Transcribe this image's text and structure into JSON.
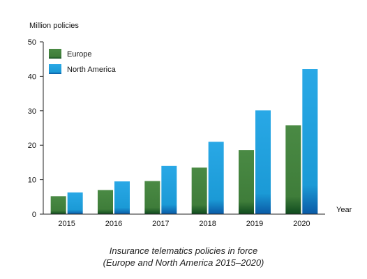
{
  "chart_data": {
    "type": "bar",
    "categories": [
      "2015",
      "2016",
      "2017",
      "2018",
      "2019",
      "2020"
    ],
    "series": [
      {
        "name": "Europe",
        "values": [
          5.2,
          7.0,
          9.6,
          13.5,
          18.6,
          25.8
        ],
        "color": "#3f7d3a"
      },
      {
        "name": "North America",
        "values": [
          6.3,
          9.5,
          14.0,
          21.0,
          30.1,
          42.1
        ],
        "color": "#1b9ad6"
      }
    ],
    "ylabel": "Million policies",
    "xlabel": "Year",
    "ylim": [
      0,
      50
    ],
    "yticks": [
      0,
      10,
      20,
      30,
      40,
      50
    ],
    "grid": false,
    "legend_position": "top-left",
    "caption_line1": "Insurance telematics policies in force",
    "caption_line2": "(Europe and North America 2015–2020)"
  }
}
